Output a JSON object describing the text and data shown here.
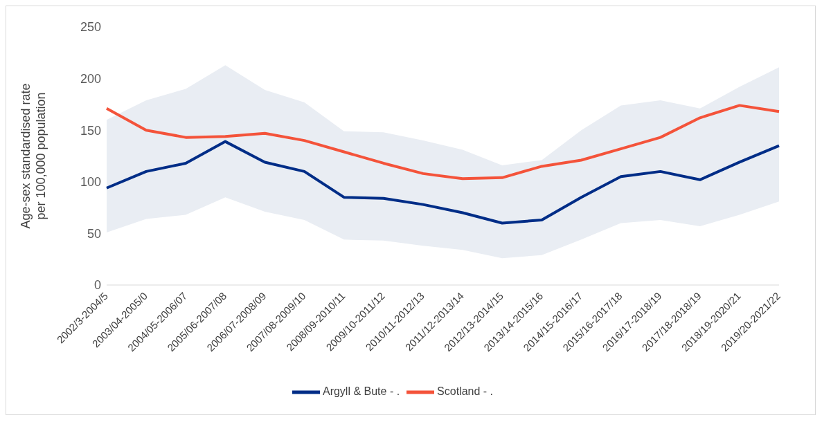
{
  "chart_data": {
    "type": "line",
    "ylabel": "Age-sex standardised rate per 100,000 population",
    "categories": [
      "2002/3-2004/5",
      "2003/04-2005/0",
      "2004/05-2006/07",
      "2005/06-2007/08",
      "2006/07-2008/09",
      "2007/08-2009/10",
      "2008/09-2010/11",
      "2009/10-2011/12",
      "2010/11-2012/13",
      "2011/12-2013/14",
      "2012/13-2014/15",
      "2013/14-2015/16",
      "2014/15-2016/17",
      "2015/16-2017/18",
      "2016/17-2018/19",
      "2017/18-2018/19",
      "2018/19-2020/21",
      "2019/20-2021/22"
    ],
    "series": [
      {
        "name": "Argyll & Bute - .",
        "color": "#002d87",
        "values": [
          94,
          110,
          118,
          139,
          119,
          110,
          85,
          84,
          78,
          70,
          60,
          63,
          85,
          105,
          110,
          102,
          119,
          135
        ],
        "lower": [
          51,
          64,
          68,
          85,
          71,
          63,
          44,
          43,
          38,
          34,
          26,
          29,
          44,
          60,
          63,
          57,
          68,
          81
        ],
        "upper": [
          160,
          179,
          190,
          213,
          189,
          177,
          149,
          148,
          140,
          131,
          116,
          121,
          150,
          174,
          179,
          171,
          192,
          211
        ]
      },
      {
        "name": "Scotland - .",
        "color": "#f4533a",
        "values": [
          171,
          150,
          143,
          144,
          147,
          140,
          129,
          118,
          108,
          103,
          104,
          115,
          121,
          132,
          143,
          162,
          174,
          168
        ]
      }
    ],
    "ylim": [
      0,
      250
    ],
    "yticks": [
      0,
      50,
      100,
      150,
      200,
      250
    ],
    "grid": false,
    "legend": "bottom",
    "marker": "none",
    "line_style": "solid"
  }
}
